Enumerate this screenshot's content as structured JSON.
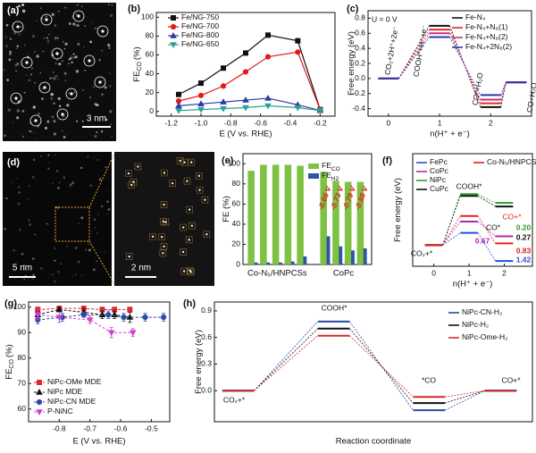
{
  "images": [
    {
      "label": "(a)",
      "scale_bar": "3 nm"
    },
    {
      "label": "(d)",
      "scale_bars": [
        "5 nm",
        "2 nm"
      ]
    }
  ],
  "chart_data": [
    {
      "type": "line",
      "panel_label": "(b)",
      "xlabel": "E (V vs. RHE)",
      "ylabel": "FE",
      "ylabel_sub": "CO",
      "ylabel_unit": "(%)",
      "x": [
        -1.15,
        -1.0,
        -0.85,
        -0.7,
        -0.55,
        -0.35,
        -0.2
      ],
      "xlim": [
        -1.3,
        -0.1
      ],
      "xticks": [
        -1.2,
        {
          "value": -1.0,
          "label": "-1.0"
        },
        -0.8,
        -0.6,
        -0.4,
        -0.2
      ],
      "ylim": [
        -5,
        105
      ],
      "yticks": [
        0,
        20,
        40,
        60,
        80,
        100
      ],
      "series": [
        {
          "name": "Fe/NG-750",
          "color": "#111111",
          "marker": "square",
          "values": [
            18,
            30,
            46,
            62,
            81,
            75,
            2
          ]
        },
        {
          "name": "Fe/NG-700",
          "color": "#e41a1c",
          "marker": "circle",
          "values": [
            11,
            17,
            27,
            42,
            58,
            63,
            2
          ]
        },
        {
          "name": "Fe/NG-800",
          "color": "#2b3aa8",
          "marker": "triangle",
          "values": [
            6,
            8,
            10,
            12,
            14,
            7,
            1
          ]
        },
        {
          "name": "Fe/NG-650",
          "color": "#2aa198",
          "marker": "triangle-down",
          "values": [
            1,
            2,
            3,
            4,
            6,
            4,
            1
          ]
        }
      ]
    },
    {
      "type": "energy",
      "panel_label": "(c)",
      "annotation": "U = 0 V",
      "xlabel": "n(H⁺ + e⁻)",
      "ylabel": "Free energy (eV)",
      "x": [
        0,
        1,
        2,
        2.5
      ],
      "xlim": [
        -0.4,
        2.8
      ],
      "xticks": [
        0,
        1,
        2
      ],
      "ylim": [
        -0.5,
        0.9
      ],
      "yticks": [
        -0.4,
        -0.2,
        {
          "value": 0,
          "label": "0.0"
        },
        0.2,
        0.4,
        0.6,
        0.8
      ],
      "step_labels": [
        "CO₂+2H⁺+2e⁻",
        "COOH*+H⁺+e⁻",
        "CO*+H₂O",
        "CO+H₂O"
      ],
      "series": [
        {
          "name": "Fe-N₄",
          "color": "#111111",
          "values": [
            0,
            0.7,
            -0.38,
            -0.05
          ]
        },
        {
          "name": "Fe-N₄+N₈(1)",
          "color": "#e02a2a",
          "values": [
            0,
            0.65,
            -0.33,
            -0.05
          ]
        },
        {
          "name": "Fe-N₄+N₈(2)",
          "color": "#c2307a",
          "values": [
            0,
            0.6,
            -0.28,
            -0.05
          ]
        },
        {
          "name": "Fe-N₄+2N₈(2)",
          "color": "#2b3aa8",
          "values": [
            0,
            0.55,
            -0.22,
            -0.05
          ]
        }
      ]
    },
    {
      "type": "bar",
      "panel_label": "(e)",
      "ylabel": "FE (%)",
      "ylim": [
        0,
        110
      ],
      "yticks": [
        0,
        20,
        40,
        60,
        80,
        100
      ],
      "series": [
        {
          "name": "FE",
          "subscript": "CO",
          "color": "#7dc242"
        },
        {
          "name": "FE",
          "subscript": "H2",
          "color": "#2f55a4"
        }
      ],
      "groups": [
        {
          "label": "Co-N₅/HNPCSs",
          "values": [
            [
              93,
              99,
              99,
              99,
              98
            ],
            [
              2,
              2,
              2,
              3,
              8
            ]
          ]
        },
        {
          "label": "CoPc",
          "values": [
            [
              92,
              83,
              82,
              82
            ],
            [
              28,
              18,
              14,
              16
            ]
          ],
          "annotations": [
            "-0.66 V",
            "-0.73 V",
            "-0.79 V",
            "-0.88 V"
          ]
        }
      ]
    },
    {
      "type": "energy",
      "panel_label": "(f)",
      "xlabel": "n(H⁺ + e⁻)",
      "ylabel": "Free energy (eV)",
      "x": [
        0,
        1,
        2
      ],
      "xlim": [
        -0.6,
        2.8
      ],
      "xticks": [
        0,
        1,
        2
      ],
      "ylim": [
        -0.6,
        2.6
      ],
      "step_labels": [
        {
          "text": "CO₂+*",
          "color": "#111111"
        },
        {
          "text": "COOH*",
          "color": "#111111"
        },
        {
          "text": "CO+*",
          "color": "#e02020"
        },
        {
          "text": "CO*",
          "color": "#111111"
        }
      ],
      "annotations": [
        {
          "text": "0.20",
          "color": "#2e9e2e"
        },
        {
          "text": "0.27",
          "color": "#111111"
        },
        {
          "text": "0.67",
          "color": "#b02ab0"
        },
        {
          "text": "0.83",
          "color": "#e02020"
        },
        {
          "text": "1.42",
          "color": "#2a4fd6"
        }
      ],
      "series": [
        {
          "name": "FePc",
          "color": "#2a4fd6",
          "values": [
            0,
            0.35,
            -0.45
          ]
        },
        {
          "name": "CoPc",
          "color": "#b02ab0",
          "values": [
            0,
            0.67,
            0.25
          ]
        },
        {
          "name": "NiPc",
          "color": "#2e9e2e",
          "values": [
            0,
            1.45,
            1.2
          ]
        },
        {
          "name": "CuPc",
          "color": "#111111",
          "values": [
            0,
            1.4,
            1.1
          ]
        },
        {
          "name": "Co-N₅/HNPCSs",
          "color": "#e02020",
          "values": [
            0,
            0.83,
            0.05
          ]
        }
      ]
    },
    {
      "type": "scatter",
      "panel_label": "(g)",
      "xlabel": "E (V vs. RHE)",
      "ylabel": "FE",
      "ylabel_sub": "CO",
      "ylabel_unit": "(%)",
      "xlim": [
        -0.9,
        -0.44
      ],
      "xticks": [
        -0.8,
        -0.7,
        -0.6,
        -0.5
      ],
      "ylim": [
        55,
        102
      ],
      "yticks": [
        60,
        70,
        80,
        90,
        100
      ],
      "series": [
        {
          "name": "NiPc-OMe MDE",
          "color": "#e0282e",
          "marker": "square",
          "x": [
            -0.87,
            -0.8,
            -0.72,
            -0.66,
            -0.62,
            -0.57
          ],
          "values": [
            99,
            99.5,
            99.5,
            99,
            99,
            99
          ],
          "errors": [
            1,
            0.8,
            0.8,
            1,
            1,
            1
          ]
        },
        {
          "name": "NiPc MDE",
          "color": "#111111",
          "marker": "triangle",
          "x": [
            -0.87,
            -0.8,
            -0.72,
            -0.66,
            -0.62,
            -0.57
          ],
          "values": [
            97,
            99,
            98,
            97,
            97,
            96
          ],
          "errors": [
            1.5,
            1,
            1.5,
            1.5,
            1.5,
            2
          ]
        },
        {
          "name": "NiPc-CN MDE",
          "color": "#2b4aa6",
          "marker": "circle",
          "x": [
            -0.87,
            -0.79,
            -0.72,
            -0.64,
            -0.59,
            -0.52,
            -0.46
          ],
          "values": [
            95,
            96,
            97,
            97,
            96,
            96,
            96
          ],
          "errors": [
            1.5,
            1.5,
            1,
            1.5,
            1.5,
            1.5,
            1.5
          ]
        },
        {
          "name": "P-NiNC",
          "color": "#d040d0",
          "marker": "triangle-down",
          "x": [
            -0.87,
            -0.8,
            -0.7,
            -0.63,
            -0.56
          ],
          "values": [
            97,
            96,
            95,
            90,
            90
          ],
          "errors": [
            2,
            2,
            1.5,
            2,
            1.5
          ]
        }
      ]
    },
    {
      "type": "energy",
      "panel_label": "(h)",
      "xlabel": "Reaction coordinate",
      "ylabel": "Free energy (eV)",
      "x": [
        0.3,
        1.5,
        2.7,
        3.6
      ],
      "xlim": [
        0,
        4
      ],
      "ylim": [
        -0.35,
        1.0
      ],
      "yticks": [
        {
          "value": 0,
          "label": "0.0"
        },
        0.3,
        0.6,
        0.9
      ],
      "step_labels": [
        "CO₂+*",
        "COOH*",
        "*CO",
        "CO+*"
      ],
      "series": [
        {
          "name": "NiPc-CN-H₂",
          "color": "#2b4aa6",
          "values": [
            0,
            0.78,
            -0.22,
            0
          ]
        },
        {
          "name": "NiPc-H₂",
          "color": "#111111",
          "values": [
            0,
            0.7,
            -0.14,
            0
          ]
        },
        {
          "name": "NiPc-Ome-H₂",
          "color": "#d62a2a",
          "values": [
            0,
            0.62,
            -0.07,
            0
          ]
        }
      ]
    }
  ]
}
